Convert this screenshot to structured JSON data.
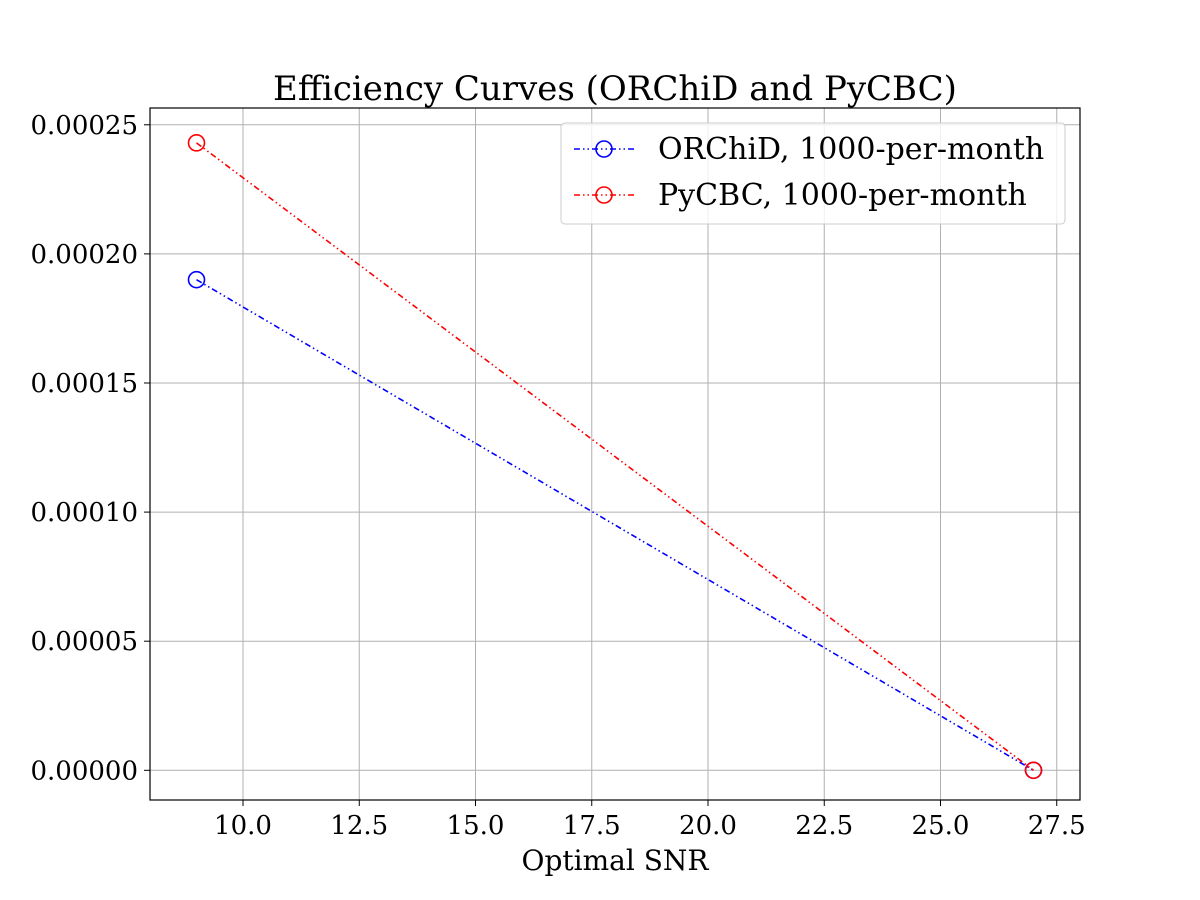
{
  "chart_data": {
    "type": "line",
    "title": "Efficiency Curves (ORChiD and PyCBC)",
    "xlabel": "Optimal SNR",
    "ylabel": "",
    "xlim": [
      8.0,
      28.0
    ],
    "ylim": [
      -1.15e-05,
      0.0002565
    ],
    "xticks": [
      10.0,
      12.5,
      15.0,
      17.5,
      20.0,
      22.5,
      25.0,
      27.5
    ],
    "xtick_labels": [
      "10.0",
      "12.5",
      "15.0",
      "17.5",
      "20.0",
      "22.5",
      "25.0",
      "27.5"
    ],
    "yticks": [
      0.0,
      5e-05,
      0.0001,
      0.00015,
      0.0002,
      0.00025
    ],
    "ytick_labels": [
      "0.00000",
      "0.00005",
      "0.00010",
      "0.00015",
      "0.00020",
      "0.00025"
    ],
    "grid": true,
    "legend_position": "top-right",
    "series": [
      {
        "name": "ORChiD, 1000-per-month",
        "color": "#0000ff",
        "marker": "open-circle",
        "line_style": "dash-dot-dot",
        "x": [
          9.0,
          27.0
        ],
        "y": [
          0.00019,
          0.0
        ]
      },
      {
        "name": "PyCBC, 1000-per-month",
        "color": "#ff0000",
        "marker": "open-circle",
        "line_style": "dash-dot-dot",
        "x": [
          9.0,
          27.0
        ],
        "y": [
          0.000243,
          0.0
        ]
      }
    ]
  }
}
